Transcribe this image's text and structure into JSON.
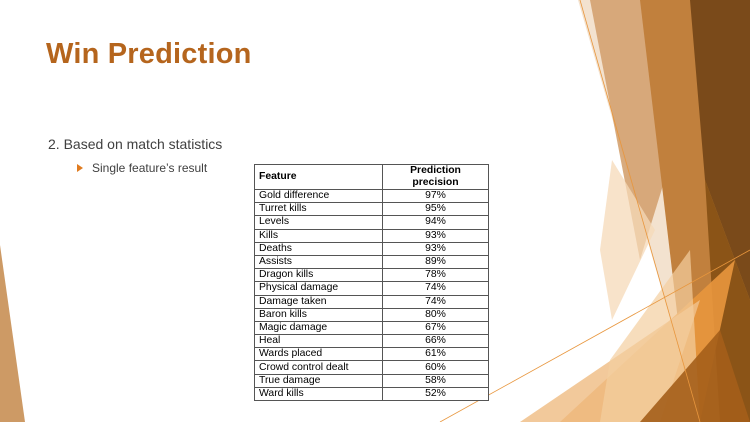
{
  "slide": {
    "title": "Win Prediction",
    "subtitle": "2. Based on match statistics",
    "bullet": "Single feature’s result"
  },
  "table": {
    "headers": [
      "Feature",
      "Prediction precision"
    ],
    "rows": [
      {
        "feature": "Gold difference",
        "precision": "97%"
      },
      {
        "feature": "Turret kills",
        "precision": "95%"
      },
      {
        "feature": "Levels",
        "precision": "94%"
      },
      {
        "feature": "Kills",
        "precision": "93%"
      },
      {
        "feature": "Deaths",
        "precision": "93%"
      },
      {
        "feature": "Assists",
        "precision": "89%"
      },
      {
        "feature": "Dragon kills",
        "precision": "78%"
      },
      {
        "feature": "Physical damage",
        "precision": "74%"
      },
      {
        "feature": "Damage taken",
        "precision": "74%"
      },
      {
        "feature": "Baron kills",
        "precision": "80%"
      },
      {
        "feature": "Magic damage",
        "precision": "67%"
      },
      {
        "feature": "Heal",
        "precision": "66%"
      },
      {
        "feature": "Wards placed",
        "precision": "61%"
      },
      {
        "feature": "Crowd control dealt",
        "precision": "60%"
      },
      {
        "feature": "True damage",
        "precision": "58%"
      },
      {
        "feature": "Ward kills",
        "precision": "52%"
      }
    ]
  },
  "theme": {
    "title_color": "#b5651d",
    "accent": "#e07b1f",
    "dark_brown": "#7a4a1a"
  }
}
